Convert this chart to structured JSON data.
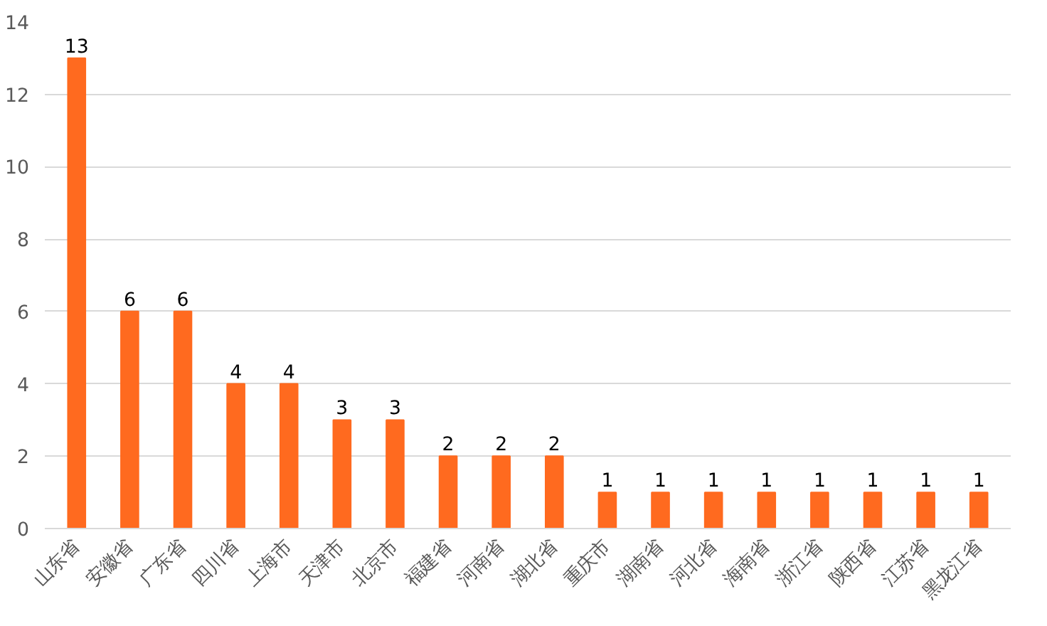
{
  "chart_data": {
    "type": "bar",
    "categories": [
      "山东省",
      "安徽省",
      "广东省",
      "四川省",
      "上海市",
      "天津市",
      "北京市",
      "福建省",
      "河南省",
      "湖北省",
      "重庆市",
      "湖南省",
      "河北省",
      "海南省",
      "浙江省",
      "陕西省",
      "江苏省",
      "黑龙江省"
    ],
    "values": [
      13,
      6,
      6,
      4,
      4,
      3,
      3,
      2,
      2,
      2,
      1,
      1,
      1,
      1,
      1,
      1,
      1,
      1
    ],
    "color": "#ff6a1f",
    "ylim": [
      0,
      14
    ],
    "yticks": [
      0,
      2,
      4,
      6,
      8,
      10,
      12,
      14
    ],
    "grid": "y",
    "data_labels": true
  }
}
